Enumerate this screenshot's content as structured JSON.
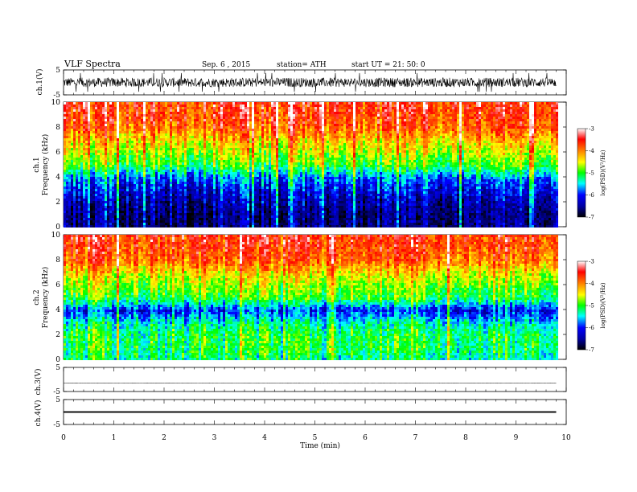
{
  "header": {
    "title": "VLF  Spectra",
    "date": "Sep. 6  , 2015",
    "station": "station= ATH",
    "start": "start  UT  =    21: 50: 0"
  },
  "chart_data": [
    {
      "type": "line",
      "panel": "ch1-waveform",
      "ylabel": "ch.1(V)",
      "ylim": [
        -5,
        5
      ],
      "yticks": [
        "5",
        "-5"
      ],
      "x_range_min": [
        0,
        9.8
      ],
      "baseline": 0,
      "envelope": [
        -2.5,
        2.5
      ],
      "stroke": "#000000"
    },
    {
      "type": "heatmap",
      "panel": "ch1-spectrogram",
      "ylabel": "ch.1\nFrequency  (kHz)",
      "ylabel_channel": "ch.1",
      "ylabel_quantity": "Frequency  (kHz)",
      "ylim": [
        0,
        10
      ],
      "yticks": [
        "0",
        "2",
        "4",
        "6",
        "8",
        "10"
      ],
      "x_range_min": [
        0,
        9.8
      ],
      "band_profile_khz": [
        0,
        1,
        2,
        3,
        4,
        5,
        6,
        7,
        8,
        9,
        10
      ],
      "band_profile_logpsd": [
        -7,
        -7,
        -6.8,
        -6.5,
        -6.1,
        -5.2,
        -4.8,
        -4.4,
        -3.9,
        -3.7,
        -3.6
      ],
      "colorbar": {
        "label": "log(PSD)(V²/Hz)",
        "range": [
          -7,
          -3
        ],
        "ticks": [
          "-3",
          "-4",
          "-5",
          "-6",
          "-7"
        ]
      }
    },
    {
      "type": "heatmap",
      "panel": "ch2-spectrogram",
      "ylabel": "ch.2\nFrequency  (kHz)",
      "ylabel_channel": "ch.2",
      "ylabel_quantity": "Frequency  (kHz)",
      "ylim": [
        0,
        10
      ],
      "yticks": [
        "0",
        "2",
        "4",
        "6",
        "8",
        "10"
      ],
      "x_range_min": [
        0,
        9.8
      ],
      "band_profile_khz": [
        0,
        1,
        2,
        3,
        4,
        5,
        6,
        7,
        8,
        9,
        10
      ],
      "band_profile_logpsd": [
        -5.5,
        -5.3,
        -5.3,
        -5.6,
        -6.3,
        -5.2,
        -4.9,
        -4.5,
        -3.9,
        -3.7,
        -3.6
      ],
      "colorbar": {
        "label": "log(PSD)(V²/Hz)",
        "range": [
          -7,
          -3
        ],
        "ticks": [
          "-3",
          "-4",
          "-5",
          "-6",
          "-7"
        ]
      }
    },
    {
      "type": "line",
      "panel": "ch3-waveform",
      "ylabel": "ch.3(V)",
      "ylim": [
        -5,
        5
      ],
      "yticks": [
        "5",
        "-5"
      ],
      "x_range_min": [
        0,
        9.8
      ],
      "baseline": -1.5,
      "envelope": [
        -1.7,
        -1.3
      ],
      "stroke": "#333333"
    },
    {
      "type": "line",
      "panel": "ch4-waveform",
      "ylabel": "ch.4(V)",
      "ylim": [
        -5,
        5
      ],
      "yticks": [
        "5",
        "-5"
      ],
      "x_range_min": [
        0,
        9.8
      ],
      "baseline": 0,
      "envelope": [
        -0.3,
        0.3
      ],
      "stroke": "#000000"
    }
  ],
  "xaxis": {
    "xlabel": "Time  (min)",
    "xlim": [
      0,
      10
    ],
    "ticks": [
      "0",
      "1",
      "2",
      "3",
      "4",
      "5",
      "6",
      "7",
      "8",
      "9",
      "10"
    ]
  },
  "colormap": [
    "#000000",
    "#00008b",
    "#0000ff",
    "#00ffff",
    "#00ff00",
    "#ffff00",
    "#ff7f00",
    "#ff0000",
    "#ffffff"
  ]
}
